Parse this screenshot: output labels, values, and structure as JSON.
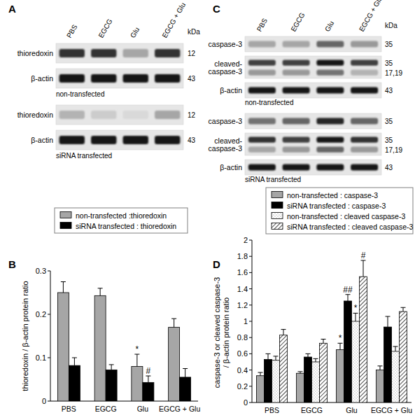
{
  "panels": [
    {
      "label": "A",
      "columns": [
        "PBS",
        "EGCG",
        "Glu",
        "EGCG + Glu"
      ],
      "unit": "kDa",
      "groups": [
        {
          "caption": "non-transfected",
          "rows": [
            {
              "label": [
                "thioredoxin"
              ],
              "bands": [
                {
                  "kda": "12",
                  "intensity": [
                    0.8,
                    0.8,
                    0.35,
                    0.8
                  ]
                }
              ]
            },
            {
              "label": [
                "β-actin"
              ],
              "bands": [
                {
                  "kda": "43",
                  "intensity": [
                    0.9,
                    0.9,
                    0.9,
                    0.9
                  ]
                }
              ]
            }
          ]
        },
        {
          "caption": "siRNA transfected",
          "rows": [
            {
              "label": [
                "thioredoxin"
              ],
              "bands": [
                {
                  "kda": "12",
                  "intensity": [
                    0.3,
                    0.2,
                    0.15,
                    0.35
                  ]
                }
              ]
            },
            {
              "label": [
                "β-actin"
              ],
              "bands": [
                {
                  "kda": "43",
                  "intensity": [
                    0.9,
                    0.9,
                    0.9,
                    0.9
                  ]
                }
              ]
            }
          ]
        }
      ]
    },
    {
      "label": "C",
      "columns": [
        "PBS",
        "EGCG",
        "Glu",
        "EGCG + Glu"
      ],
      "unit": "kDa",
      "groups": [
        {
          "caption": "non-transfected",
          "rows": [
            {
              "label": [
                "caspase-3"
              ],
              "bands": [
                {
                  "kda": "35",
                  "intensity": [
                    0.35,
                    0.35,
                    0.6,
                    0.4
                  ]
                }
              ]
            },
            {
              "label": [
                "cleaved-",
                "caspase-3"
              ],
              "bands": [
                {
                  "kda": "35",
                  "intensity": [
                    0.75,
                    0.75,
                    0.9,
                    0.75
                  ]
                },
                {
                  "kda": "17,19",
                  "intensity": [
                    0.4,
                    0.4,
                    0.55,
                    0.3
                  ]
                }
              ]
            },
            {
              "label": [
                "β-actin"
              ],
              "bands": [
                {
                  "kda": "43",
                  "intensity": [
                    0.9,
                    0.9,
                    0.9,
                    0.9
                  ]
                }
              ]
            }
          ]
        },
        {
          "caption": "siRNA transfected",
          "rows": [
            {
              "label": [
                "caspase-3"
              ],
              "bands": [
                {
                  "kda": "35",
                  "intensity": [
                    0.55,
                    0.6,
                    0.85,
                    0.6
                  ]
                }
              ]
            },
            {
              "label": [
                "cleaved-",
                "caspase-3"
              ],
              "bands": [
                {
                  "kda": "35",
                  "intensity": [
                    0.8,
                    0.75,
                    0.9,
                    0.8
                  ]
                },
                {
                  "kda": "17,19",
                  "intensity": [
                    0.35,
                    0.4,
                    0.6,
                    0.4
                  ]
                }
              ]
            },
            {
              "label": [
                "β-actin"
              ],
              "bands": [
                {
                  "kda": "43",
                  "intensity": [
                    0.9,
                    0.9,
                    0.9,
                    0.9
                  ]
                }
              ]
            }
          ]
        }
      ]
    }
  ],
  "chart_data": [
    {
      "type": "bar",
      "title": "B",
      "categories": [
        "PBS",
        "EGCG",
        "Glu",
        "EGCG + Glu"
      ],
      "ylabel": [
        "thioredoxin / β-actin protein ratio"
      ],
      "ylim": [
        0,
        0.3
      ],
      "yticks": [
        0,
        0.1,
        0.2,
        0.3
      ],
      "legend": "top",
      "series": [
        {
          "name": "non-transfected :thioredoxin",
          "color": "#a6a6a6",
          "values": [
            0.25,
            0.243,
            0.08,
            0.17
          ],
          "errors": [
            0.025,
            0.017,
            0.028,
            0.02
          ],
          "annotations": [
            null,
            null,
            "*",
            null
          ]
        },
        {
          "name": "siRNA transfected : thioredoxin",
          "color": "#000000",
          "values": [
            0.082,
            0.072,
            0.043,
            0.055
          ],
          "errors": [
            0.018,
            0.012,
            0.015,
            0.02
          ],
          "annotations": [
            null,
            null,
            "#",
            null
          ]
        }
      ]
    },
    {
      "type": "bar",
      "title": "D",
      "categories": [
        "PBS",
        "EGCG",
        "Glu",
        "EGCG + Glu"
      ],
      "ylabel": [
        "caspase-3 or cleaved  caspase-3",
        "/ β-actin protein ratio"
      ],
      "ylim": [
        0,
        2
      ],
      "yticks": [
        0,
        0.2,
        0.4,
        0.6,
        0.8,
        1,
        1.2,
        1.4,
        1.6,
        1.8,
        2
      ],
      "legend": "top",
      "series": [
        {
          "name": "non-transfected : caspase-3",
          "color": "#a6a6a6",
          "values": [
            0.33,
            0.36,
            0.65,
            0.4
          ],
          "errors": [
            0.04,
            0.02,
            0.08,
            0.05
          ],
          "annotations": [
            null,
            null,
            "*",
            null
          ]
        },
        {
          "name": "siRNA transfected : caspase-3",
          "color": "#000000",
          "values": [
            0.53,
            0.56,
            1.25,
            0.93
          ],
          "errors": [
            0.07,
            0.04,
            0.08,
            0.13
          ],
          "annotations": [
            null,
            null,
            "##",
            null
          ]
        },
        {
          "name": "non-transfected : cleaved caspase-3",
          "color": "#f2f2f2",
          "values": [
            0.52,
            0.5,
            1.0,
            0.63
          ],
          "errors": [
            0.05,
            0.04,
            0.1,
            0.06
          ],
          "annotations": [
            null,
            null,
            "*",
            null
          ]
        },
        {
          "name": "siRNA transfected : cleaved caspase-3",
          "color": "#ffffff",
          "values": [
            0.83,
            0.73,
            1.55,
            1.12
          ],
          "errors": [
            0.07,
            0.05,
            0.2,
            0.05
          ],
          "annotations": [
            null,
            null,
            "#",
            null
          ]
        }
      ]
    }
  ]
}
